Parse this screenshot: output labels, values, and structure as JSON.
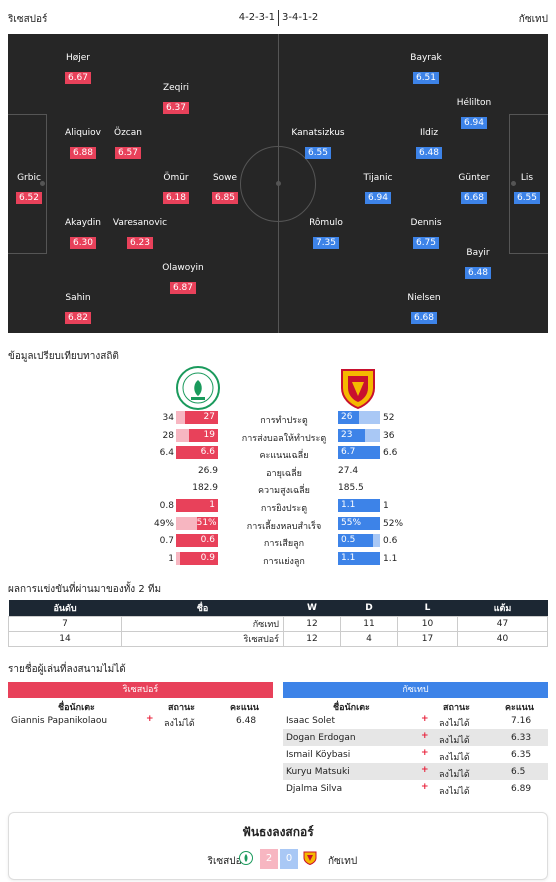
{
  "header": {
    "home_name": "ริเซสปอร์",
    "away_name": "กัซเทป",
    "home_formation": "4-2-3-1",
    "away_formation": "3-4-1-2"
  },
  "home_players": [
    {
      "name": "Grbic",
      "rating": "6.52"
    },
    {
      "name": "Højer",
      "rating": "6.67"
    },
    {
      "name": "Aliquiov",
      "rating": "6.88"
    },
    {
      "name": "Akaydin",
      "rating": "6.30"
    },
    {
      "name": "Sahin",
      "rating": "6.82"
    },
    {
      "name": "Özcan",
      "rating": "6.57"
    },
    {
      "name": "Varesanovic",
      "rating": "6.23"
    },
    {
      "name": "Zeqiri",
      "rating": "6.37"
    },
    {
      "name": "Ömür",
      "rating": "6.18"
    },
    {
      "name": "Olawoyin",
      "rating": "6.87"
    },
    {
      "name": "Sowe",
      "rating": "6.85"
    }
  ],
  "away_players": [
    {
      "name": "Lis",
      "rating": "6.55"
    },
    {
      "name": "Hélilton",
      "rating": "6.94"
    },
    {
      "name": "Günter",
      "rating": "6.68"
    },
    {
      "name": "Bayir",
      "rating": "6.48"
    },
    {
      "name": "Bayrak",
      "rating": "6.51"
    },
    {
      "name": "Ildiz",
      "rating": "6.48"
    },
    {
      "name": "Dennis",
      "rating": "6.75"
    },
    {
      "name": "Nielsen",
      "rating": "6.68"
    },
    {
      "name": "Kanatsizkus",
      "rating": "6.55"
    },
    {
      "name": "Tijanic",
      "rating": "6.94"
    },
    {
      "name": "Rômulo",
      "rating": "7.35"
    }
  ],
  "stats_title": "ข้อมูลเปรียบเทียบทางสถิติ",
  "stats": [
    {
      "label": "การทำประตู",
      "home": "34",
      "home_bar": "27",
      "home_frac": 0.79,
      "away_bar": "26",
      "away_frac": 0.5,
      "away": "52",
      "type": "bar"
    },
    {
      "label": "การส่งบอลให้ทำประตู",
      "home": "28",
      "home_bar": "19",
      "home_frac": 0.68,
      "away_bar": "23",
      "away_frac": 0.64,
      "away": "36",
      "type": "bar"
    },
    {
      "label": "คะแนนเฉลี่ย",
      "home": "6.4",
      "home_bar": "6.6",
      "home_frac": 1.0,
      "away_bar": "6.7",
      "away_frac": 1.0,
      "away": "6.6",
      "type": "bar"
    },
    {
      "label": "อายุเฉลี่ย",
      "home": "26.9",
      "away": "27.4",
      "type": "plain"
    },
    {
      "label": "ความสูงเฉลี่ย",
      "home": "182.9",
      "away": "185.5",
      "type": "plain"
    },
    {
      "label": "การยิงประตู",
      "home": "0.8",
      "home_bar": "1",
      "home_frac": 1.0,
      "away_bar": "1.1",
      "away_frac": 1.0,
      "away": "1",
      "type": "bar"
    },
    {
      "label": "การเลี้ยงหลบสำเร็จ",
      "home": "49%",
      "home_bar": "51%",
      "home_frac": 0.51,
      "away_bar": "55%",
      "away_frac": 1.0,
      "away": "52%",
      "type": "bar"
    },
    {
      "label": "การเสียลูก",
      "home": "0.7",
      "home_bar": "0.6",
      "home_frac": 1.0,
      "away_bar": "0.5",
      "away_frac": 0.83,
      "away": "0.6",
      "type": "bar"
    },
    {
      "label": "การแย่งลูก",
      "home": "1",
      "home_bar": "0.9",
      "home_frac": 0.9,
      "away_bar": "1.1",
      "away_frac": 1.0,
      "away": "1.1",
      "type": "bar"
    }
  ],
  "standings_title": "ผลการแข่งขันที่ผ่านมาของทั้ง 2 ทีม",
  "standings": {
    "headers": [
      "อันดับ",
      "ชื่อ",
      "W",
      "D",
      "L",
      "แต้ม"
    ],
    "rows": [
      [
        "7",
        "กัซเทป",
        "12",
        "11",
        "10",
        "47"
      ],
      [
        "14",
        "ริเซสปอร์",
        "12",
        "4",
        "17",
        "40"
      ]
    ]
  },
  "missing_title": "รายชื่อผู้เล่นที่ลงสนามไม่ได้",
  "missing_home": {
    "team": "ริเซสปอร์",
    "col_player": "ชื่อนักเตะ",
    "col_status": "สถานะ",
    "col_rating": "คะแนน",
    "rows": [
      {
        "name": "Giannis Papanikolaou",
        "status": "ลงไม่ได้",
        "rating": "6.48"
      }
    ]
  },
  "missing_away": {
    "team": "กัซเทป",
    "col_player": "ชื่อนักเตะ",
    "col_status": "สถานะ",
    "col_rating": "คะแนน",
    "rows": [
      {
        "name": "Isaac Solet",
        "status": "ลงไม่ได้",
        "rating": "7.16"
      },
      {
        "name": "Dogan Erdogan",
        "status": "ลงไม่ได้",
        "rating": "6.33"
      },
      {
        "name": "Ismail Köybasi",
        "status": "ลงไม่ได้",
        "rating": "6.35"
      },
      {
        "name": "Kuryu Matsuki",
        "status": "ลงไม่ได้",
        "rating": "6.5"
      },
      {
        "name": "Djalma Silva",
        "status": "ลงไม่ได้",
        "rating": "6.89"
      }
    ]
  },
  "h2h": {
    "title": "ฟันธงลงสกอร์",
    "home_name": "ริเซสปอร์",
    "home_score": "2",
    "away_score": "0",
    "away_name": "กัซเทป"
  },
  "colors": {
    "home": "#e8415a",
    "away": "#3d83e8",
    "pitch": "#262626"
  }
}
